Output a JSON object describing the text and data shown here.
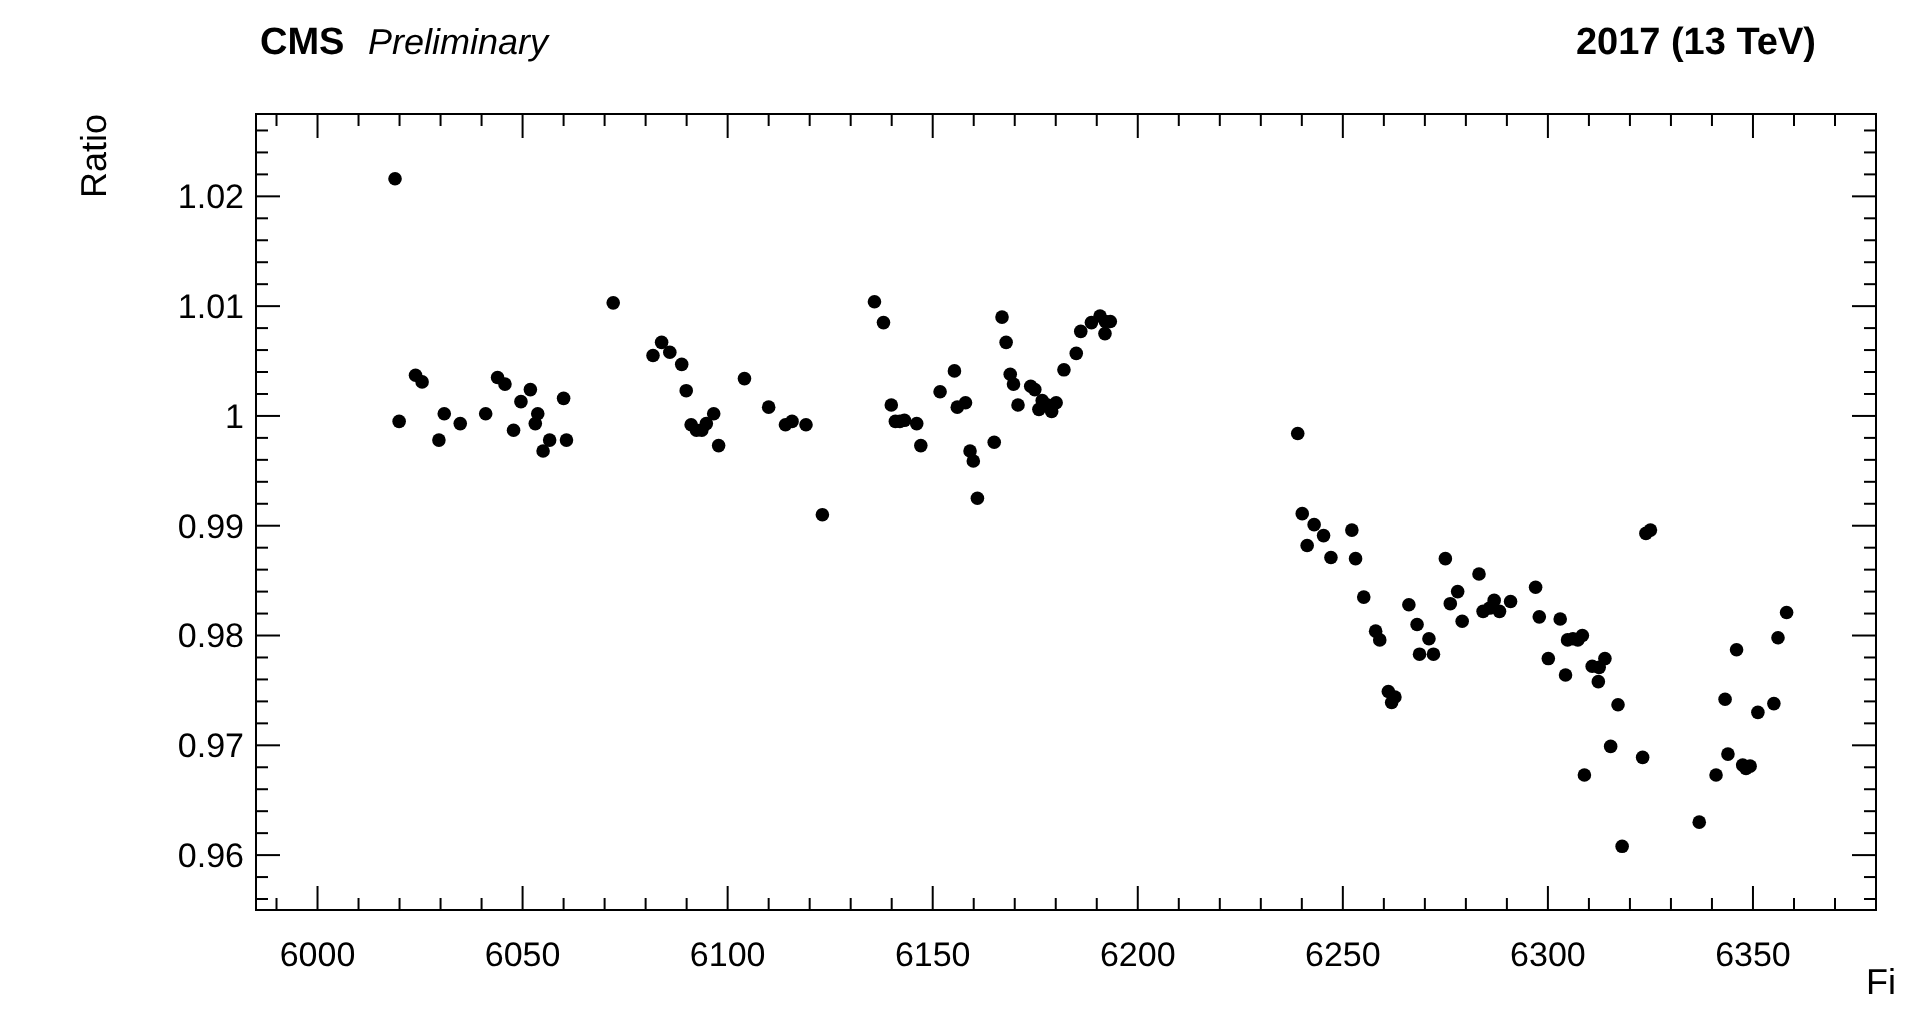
{
  "chart_data": {
    "type": "scatter",
    "title": "CMS",
    "subtitle": "Preliminary",
    "annotations": [
      "2017 (13 TeV)"
    ],
    "xlabel": "Fi",
    "ylabel": "Ratio",
    "marker": "circle",
    "grid": false,
    "xlim": [
      5985,
      6380
    ],
    "ylim": [
      0.955,
      1.0275
    ],
    "xticks": [
      6000,
      6050,
      6100,
      6150,
      6200,
      6250,
      6300,
      6350
    ],
    "yticks": [
      0.96,
      0.97,
      0.98,
      0.99,
      1,
      1.01,
      1.02
    ],
    "series": [
      {
        "color": "#000000",
        "x": [
          6018.9,
          6019.9,
          6023.9,
          6025.5,
          6029.6,
          6030.9,
          6034.8,
          6041,
          6043.9,
          6045.7,
          6047.8,
          6049.6,
          6051.9,
          6053.7,
          6053.1,
          6055,
          6056.6,
          6060,
          6060.7,
          6072.1,
          6081.8,
          6083.9,
          6085.9,
          6088.8,
          6089.9,
          6091.1,
          6092.4,
          6093.7,
          6094.8,
          6096.6,
          6097.8,
          6104.1,
          6110,
          6114.1,
          6115.7,
          6119.1,
          6123.1,
          6135.8,
          6138,
          6139.9,
          6140.9,
          6142,
          6143.1,
          6146.1,
          6147.1,
          6151.8,
          6155.3,
          6156,
          6158,
          6159.1,
          6159.9,
          6160.9,
          6165,
          6166.9,
          6167.9,
          6168.9,
          6169.7,
          6170.8,
          6173.9,
          6174.9,
          6176.7,
          6175.9,
          6178,
          6180.1,
          6179,
          6182,
          6185,
          6186.1,
          6188.7,
          6190.8,
          6192.1,
          6193.3,
          6192,
          6239,
          6240.1,
          6243,
          6245.3,
          6241.3,
          6247.1,
          6252.2,
          6253.1,
          6255.1,
          6258,
          6259,
          6261.1,
          6262.7,
          6261.9,
          6266.1,
          6268.1,
          6271,
          6268.7,
          6272.1,
          6275,
          6276.2,
          6278,
          6279.1,
          6283.2,
          6284.2,
          6286.9,
          6285.8,
          6288.2,
          6290.9,
          6297,
          6297.9,
          6303,
          6300.1,
          6304.3,
          6304.8,
          6306.1,
          6307.3,
          6308.4,
          6308.9,
          6310.8,
          6312.5,
          6313.9,
          6312.3,
          6315.3,
          6317.1,
          6318.1,
          6323.1,
          6323.9,
          6325,
          6336.9,
          6341,
          6343.9,
          6343.2,
          6346,
          6347.5,
          6348.3,
          6349.3,
          6351.2,
          6355.1,
          6356.1,
          6358.2
        ],
        "values": [
          1.0216,
          0.9995,
          1.0037,
          1.0031,
          0.9978,
          1.0002,
          0.9993,
          1.0002,
          1.0035,
          1.0029,
          0.9987,
          1.0013,
          1.0024,
          1.0002,
          0.9993,
          0.9968,
          0.9978,
          1.0016,
          0.9978,
          1.0103,
          1.0055,
          1.0067,
          1.0058,
          1.0047,
          1.0023,
          0.9992,
          0.9987,
          0.9987,
          0.9993,
          1.0002,
          0.9973,
          1.0034,
          1.0008,
          0.9992,
          0.9995,
          0.9992,
          0.991,
          1.0104,
          1.0085,
          1.001,
          0.9995,
          0.9995,
          0.9996,
          0.9993,
          0.9973,
          1.0022,
          1.0041,
          1.0008,
          1.0012,
          0.9968,
          0.9959,
          0.9925,
          0.9976,
          1.009,
          1.0067,
          1.0038,
          1.0029,
          1.001,
          1.0027,
          1.0024,
          1.0014,
          1.0006,
          1.001,
          1.0012,
          1.0004,
          1.0042,
          1.0057,
          1.0077,
          1.0085,
          1.0091,
          1.0086,
          1.0086,
          1.0075,
          0.9984,
          0.9911,
          0.9901,
          0.9891,
          0.9882,
          0.9871,
          0.9896,
          0.987,
          0.9835,
          0.9804,
          0.9796,
          0.9749,
          0.9744,
          0.9739,
          0.9828,
          0.981,
          0.9797,
          0.9783,
          0.9783,
          0.987,
          0.9829,
          0.984,
          0.9813,
          0.9856,
          0.9822,
          0.9832,
          0.9825,
          0.9822,
          0.9831,
          0.9844,
          0.9817,
          0.9815,
          0.9779,
          0.9764,
          0.9796,
          0.9797,
          0.9796,
          0.98,
          0.9673,
          0.9772,
          0.9771,
          0.9779,
          0.9758,
          0.9699,
          0.9737,
          0.9608,
          0.9689,
          0.9893,
          0.9896,
          0.963,
          0.9673,
          0.9692,
          0.9742,
          0.9787,
          0.9682,
          0.9679,
          0.9681,
          0.973,
          0.9738,
          0.9798,
          0.9821
        ]
      }
    ]
  }
}
